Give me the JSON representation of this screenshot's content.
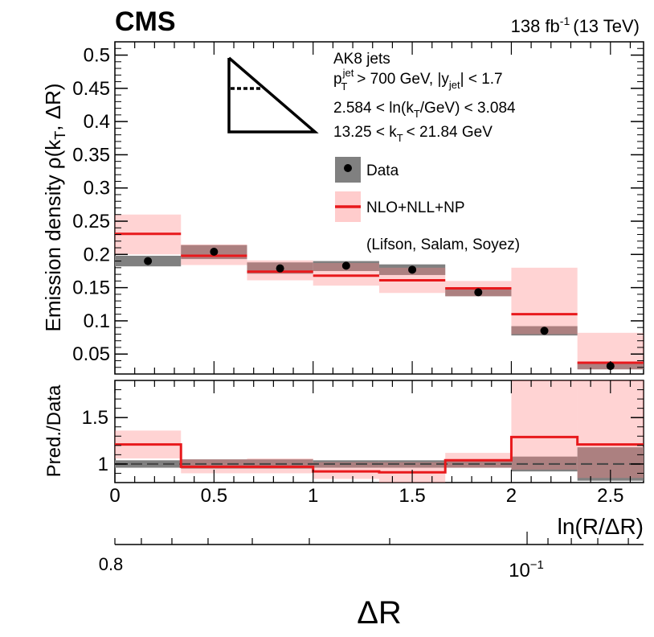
{
  "header": {
    "experiment": "CMS",
    "lumi_value": "138 fb",
    "lumi_exp": "-1",
    "energy": "(13 TeV)"
  },
  "annotations": {
    "jets": "AK8 jets",
    "pt_cut": "> 700 GeV, |y",
    "pt_cut_end": "| < 1.7",
    "pt_sym": "p",
    "pt_sup": "jet",
    "pt_sub": "T",
    "y_sub": "jet",
    "lnkt_pre": "2.584 < ln(k",
    "lnkt_sub": "T",
    "lnkt_post": "/GeV) < 3.084",
    "kt_pre": "13.25 < k",
    "kt_sub": "T",
    "kt_post": "< 21.84 GeV"
  },
  "legend": {
    "data_label": "Data",
    "pred_label": "NLO+NLL+NP",
    "citation": "(Lifson, Salam, Soyez)"
  },
  "colors": {
    "data_band": "#808080",
    "pred_line": "#e8191c",
    "pred_band": "#ffcccc",
    "overlap_band": "#8a6565",
    "marker": "#000000"
  },
  "chart_data": [
    {
      "type": "bar",
      "panel": "main",
      "title": "",
      "xlabel": "",
      "ylabel_prefix": "Emission density ρ(k",
      "ylabel_sub": "T",
      "ylabel_suffix": ", ΔR)",
      "xlim": [
        0,
        2.667
      ],
      "ylim": [
        0.02,
        0.52
      ],
      "bin_edges": [
        0,
        0.3333,
        0.6667,
        1.0,
        1.3333,
        1.6667,
        2.0,
        2.3333,
        2.6667
      ],
      "y_ticks": [
        "0.05",
        "0.1",
        "0.15",
        "0.2",
        "0.25",
        "0.3",
        "0.35",
        "0.4",
        "0.45",
        "0.5"
      ],
      "series": [
        {
          "name": "Data",
          "values": [
            0.19,
            0.204,
            0.179,
            0.183,
            0.177,
            0.143,
            0.085,
            0.032
          ],
          "unc_low": [
            0.182,
            0.193,
            0.171,
            0.175,
            0.169,
            0.137,
            0.078,
            0.027
          ],
          "unc_high": [
            0.198,
            0.214,
            0.188,
            0.19,
            0.185,
            0.15,
            0.092,
            0.038
          ]
        },
        {
          "name": "NLO+NLL+NP",
          "values": [
            0.231,
            0.198,
            0.174,
            0.168,
            0.161,
            0.149,
            0.11,
            0.037
          ],
          "unc_low": [
            0.2,
            0.184,
            0.161,
            0.153,
            0.142,
            0.137,
            0.08,
            0.027
          ],
          "unc_high": [
            0.26,
            0.215,
            0.191,
            0.187,
            0.18,
            0.16,
            0.18,
            0.082
          ]
        }
      ]
    },
    {
      "type": "bar",
      "panel": "ratio",
      "ylabel": "Pred./Data",
      "xlabel": "ln(R/ΔR)",
      "xlim": [
        0,
        2.667
      ],
      "ylim": [
        0.8,
        1.9
      ],
      "bin_edges": [
        0,
        0.3333,
        0.6667,
        1.0,
        1.3333,
        1.6667,
        2.0,
        2.3333,
        2.6667
      ],
      "reference": 1.0,
      "x_ticks": [
        "0",
        "0.5",
        "1",
        "1.5",
        "2",
        "2.5"
      ],
      "y_ticks": [
        "1",
        "1.5"
      ],
      "series": [
        {
          "name": "Data uncertainty",
          "unc_low": [
            0.96,
            0.95,
            0.95,
            0.96,
            0.96,
            0.96,
            0.92,
            0.82
          ],
          "unc_high": [
            1.04,
            1.05,
            1.05,
            1.04,
            1.04,
            1.04,
            1.08,
            1.18
          ]
        },
        {
          "name": "NLO+NLL+NP / Data",
          "values": [
            1.21,
            0.97,
            0.97,
            0.92,
            0.91,
            1.04,
            1.29,
            1.21
          ],
          "unc_low": [
            1.06,
            0.9,
            0.9,
            0.84,
            0.8,
            0.96,
            0.94,
            0.85
          ],
          "unc_high": [
            1.36,
            1.05,
            1.06,
            1.02,
            1.02,
            1.12,
            2.1,
            2.55
          ]
        }
      ]
    },
    {
      "type": "axis",
      "panel": "secondary-axis",
      "xlabel": "ΔR",
      "scale": "log",
      "label_08": "0.8",
      "label_01": "10",
      "label_01_exp": "−1"
    }
  ]
}
